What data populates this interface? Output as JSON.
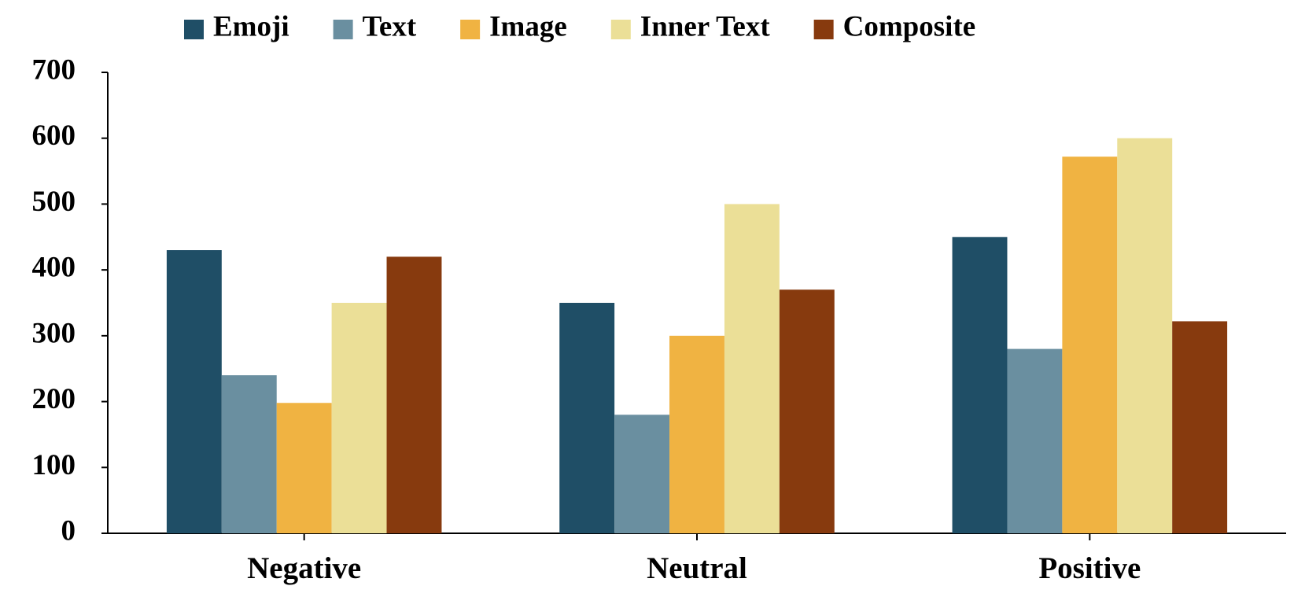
{
  "chart_data": {
    "type": "bar",
    "categories": [
      "Negative",
      "Neutral",
      "Positive"
    ],
    "series": [
      {
        "name": "Emoji",
        "color": "#1f4e66",
        "values": [
          430,
          350,
          450
        ]
      },
      {
        "name": "Text",
        "color": "#6a8fa0",
        "values": [
          240,
          180,
          280
        ]
      },
      {
        "name": "Image",
        "color": "#f0b342",
        "values": [
          198,
          300,
          572
        ]
      },
      {
        "name": "Inner Text",
        "color": "#ebdf97",
        "values": [
          350,
          500,
          600
        ]
      },
      {
        "name": "Composite",
        "color": "#873a0e",
        "values": [
          420,
          370,
          322
        ]
      }
    ],
    "ylim": [
      0,
      700
    ],
    "yticks": [
      0,
      100,
      200,
      300,
      400,
      500,
      600,
      700
    ],
    "legend": "top"
  }
}
